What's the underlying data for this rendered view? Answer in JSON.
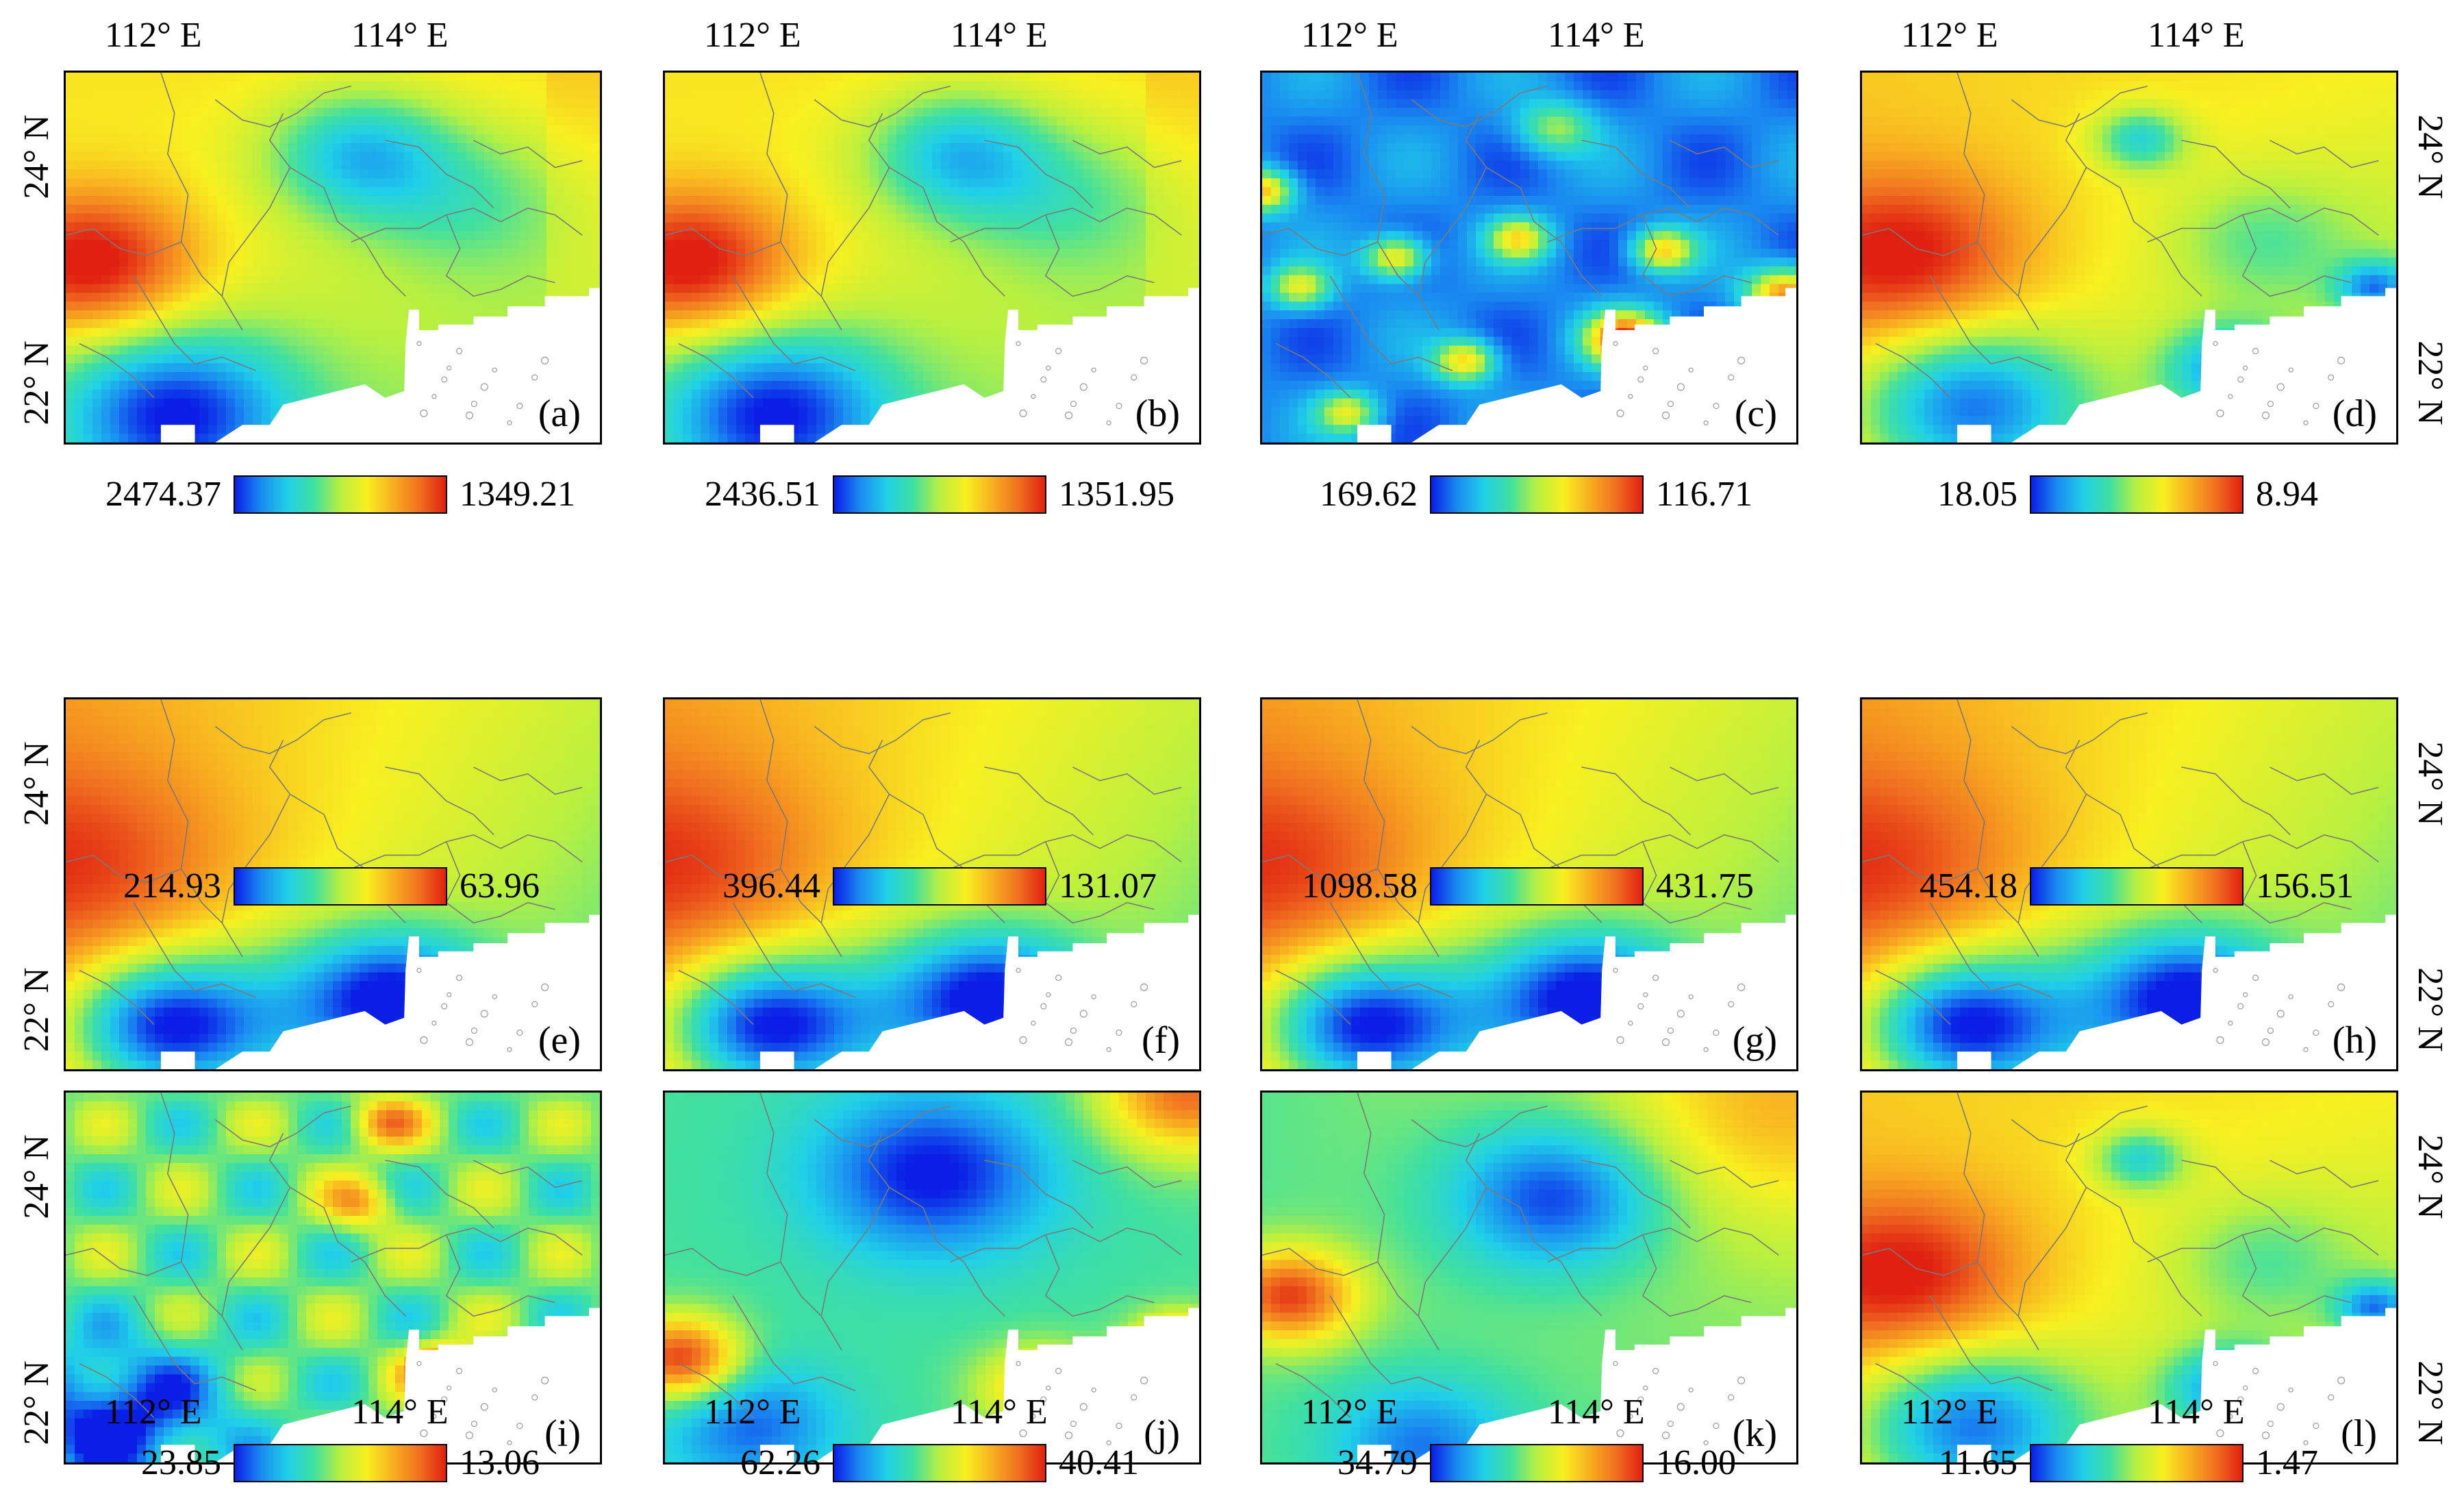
{
  "axis_labels": {
    "lon_112": "112° E",
    "lon_114": "114° E",
    "lat_24": "24° N",
    "lat_22": "22° N"
  },
  "panels": [
    {
      "label": "(a)",
      "cmin": "2474.37",
      "cmax": "1349.21",
      "pattern": "A"
    },
    {
      "label": "(b)",
      "cmin": "2436.51",
      "cmax": "1351.95",
      "pattern": "A"
    },
    {
      "label": "(c)",
      "cmin": "169.62",
      "cmax": "116.71",
      "pattern": "C"
    },
    {
      "label": "(d)",
      "cmin": "18.05",
      "cmax": "8.94",
      "pattern": "D"
    },
    {
      "label": "(e)",
      "cmin": "214.93",
      "cmax": "63.96",
      "pattern": "E"
    },
    {
      "label": "(f)",
      "cmin": "396.44",
      "cmax": "131.07",
      "pattern": "E"
    },
    {
      "label": "(g)",
      "cmin": "1098.58",
      "cmax": "431.75",
      "pattern": "E"
    },
    {
      "label": "(h)",
      "cmin": "454.18",
      "cmax": "156.51",
      "pattern": "E"
    },
    {
      "label": "(i)",
      "cmin": "23.85",
      "cmax": "13.06",
      "pattern": "I"
    },
    {
      "label": "(j)",
      "cmin": "62.26",
      "cmax": "40.41",
      "pattern": "J"
    },
    {
      "label": "(k)",
      "cmin": "34.79",
      "cmax": "16.00",
      "pattern": "K"
    },
    {
      "label": "(l)",
      "cmin": "11.65",
      "cmax": "1.47",
      "pattern": "D"
    }
  ],
  "colormap": [
    "#0a1ee6",
    "#1a8cf0",
    "#20d0e8",
    "#40e0a0",
    "#b8f040",
    "#f8f020",
    "#f8b020",
    "#f07020",
    "#e02010"
  ]
}
